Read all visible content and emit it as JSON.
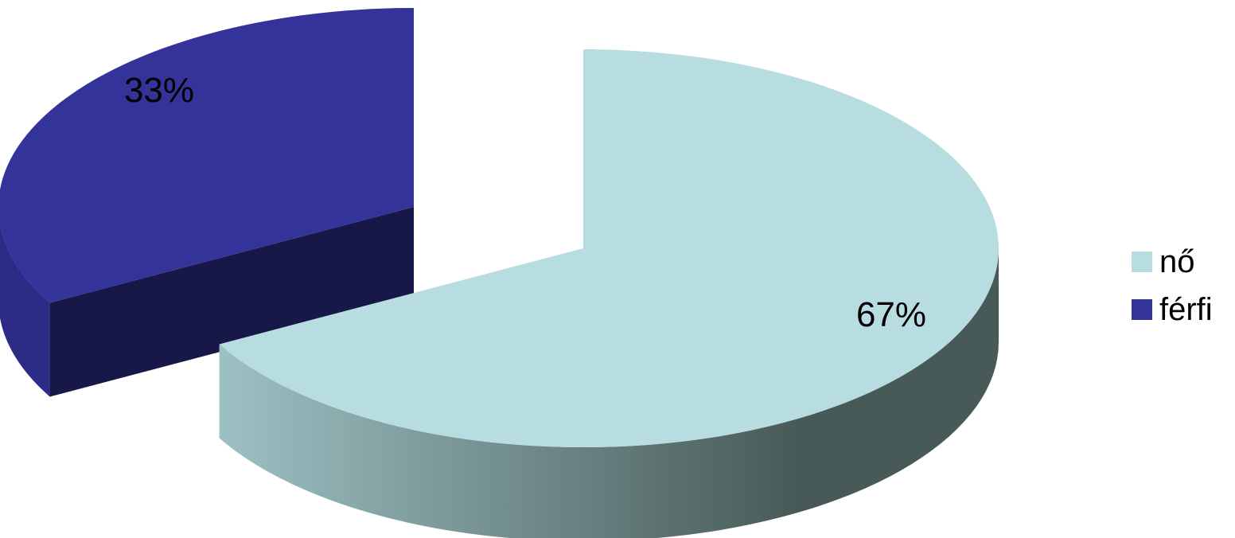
{
  "chart_data": {
    "type": "pie",
    "title": "",
    "style": "3d-exploded",
    "legend_position": "right",
    "slices": [
      {
        "label": "nő",
        "value": 67,
        "value_label": "67%",
        "color": "#b7dde1",
        "side_light": "#9fc3c6",
        "side_dark": "#485a58"
      },
      {
        "label": "férfi",
        "value": 33,
        "value_label": "33%",
        "color": "#333399",
        "side_light": "#2c2c86",
        "side_dark": "#181848"
      }
    ]
  }
}
